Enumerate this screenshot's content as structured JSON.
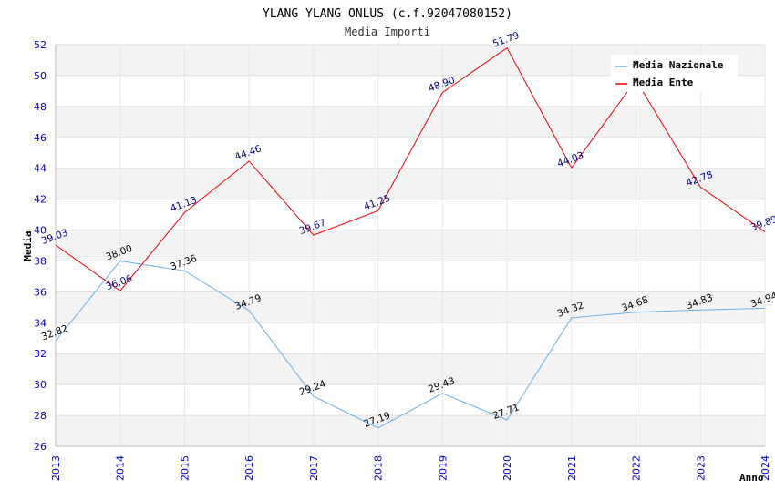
{
  "chart_data": {
    "type": "line",
    "title": "YLANG YLANG ONLUS (c.f.92047080152)",
    "subtitle": "Media Importi",
    "xlabel": "Anno",
    "ylabel": "Media",
    "ylim": [
      26,
      52
    ],
    "yticks": [
      26,
      28,
      30,
      32,
      34,
      36,
      38,
      40,
      42,
      44,
      46,
      48,
      50,
      52
    ],
    "categories": [
      "2013",
      "2014",
      "2015",
      "2016",
      "2017",
      "2018",
      "2019",
      "2020",
      "2021",
      "2022",
      "2023",
      "2024"
    ],
    "grid": true,
    "legend_position": "top-right",
    "series": [
      {
        "name": "Media Nazionale",
        "color": "#6aaee8",
        "label_color": "#000000",
        "values": [
          32.82,
          38.0,
          37.36,
          34.79,
          29.24,
          27.19,
          29.43,
          27.71,
          34.32,
          34.68,
          34.83,
          34.94
        ],
        "labels": [
          "32.82",
          "38.00",
          "37.36",
          "34.79",
          "29.24",
          "27.19",
          "29.43",
          "27.71",
          "34.32",
          "34.68",
          "34.83",
          "34.94"
        ]
      },
      {
        "name": "Media Ente",
        "color": "#ee0000",
        "label_color": "#000080",
        "values": [
          39.03,
          36.06,
          41.13,
          44.46,
          39.67,
          41.25,
          48.9,
          51.79,
          44.03,
          49.7,
          42.78,
          39.89
        ],
        "labels": [
          "39.03",
          "36.06",
          "41.13",
          "44.46",
          "39.67",
          "41.25",
          "48.90",
          "51.79",
          "44.03",
          "",
          "42.78",
          "39.89"
        ]
      }
    ]
  }
}
